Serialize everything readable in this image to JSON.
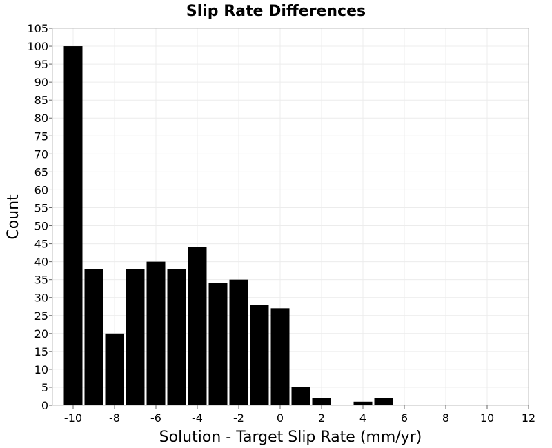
{
  "chart_data": {
    "type": "bar",
    "title": "Slip Rate Differences",
    "xlabel": "Solution - Target Slip Rate (mm/yr)",
    "ylabel": "Count",
    "xlim": [
      -11,
      12
    ],
    "ylim": [
      0,
      105
    ],
    "bin_width": 1,
    "x_ticks": [
      -10,
      -8,
      -6,
      -4,
      -2,
      0,
      2,
      4,
      6,
      8,
      10,
      12
    ],
    "y_ticks": [
      0,
      5,
      10,
      15,
      20,
      25,
      30,
      35,
      40,
      45,
      50,
      55,
      60,
      65,
      70,
      75,
      80,
      85,
      90,
      95,
      100,
      105
    ],
    "grid": true,
    "bins": [
      {
        "x": -10,
        "count": 100
      },
      {
        "x": -9,
        "count": 38
      },
      {
        "x": -8,
        "count": 20
      },
      {
        "x": -7,
        "count": 38
      },
      {
        "x": -6,
        "count": 40
      },
      {
        "x": -5,
        "count": 38
      },
      {
        "x": -4,
        "count": 44
      },
      {
        "x": -3,
        "count": 34
      },
      {
        "x": -2,
        "count": 35
      },
      {
        "x": -1,
        "count": 28
      },
      {
        "x": 0,
        "count": 27
      },
      {
        "x": 1,
        "count": 5
      },
      {
        "x": 2,
        "count": 2
      },
      {
        "x": 4,
        "count": 1
      },
      {
        "x": 5,
        "count": 2
      }
    ],
    "colors": {
      "bar": "#000000",
      "grid": "#ececec",
      "frame": "#bdbdbd"
    }
  }
}
